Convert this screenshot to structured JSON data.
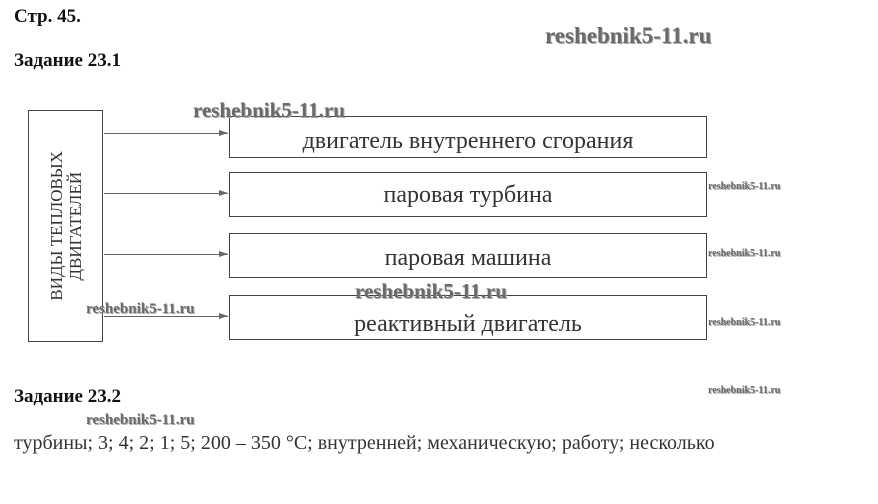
{
  "page_label": "Стр. 45.",
  "task1": {
    "title": "Задание 23.1",
    "root": "ВИДЫ ТЕПЛОВЫХ ДВИГАТЕЛЕЙ",
    "root_line1": "ВИДЫ ТЕПЛОВЫХ",
    "root_line2": "ДВИГАТЕЛЕЙ",
    "items": [
      "двигатель внутреннего сгорания",
      "паровая турбина",
      "паровая машина",
      "реактивный двигатель"
    ]
  },
  "task2": {
    "title": "Задание 23.2",
    "answer": "турбины; 3; 4; 2; 1; 5; 200 – 350 °С; внутренней; механическую; работу; несколько"
  },
  "watermark": "reshebnik5-11.ru"
}
